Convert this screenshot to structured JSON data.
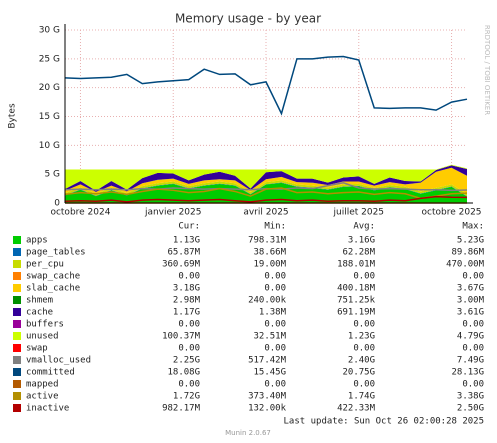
{
  "chart_data": {
    "type": "area",
    "title": "Memory usage - by year",
    "y_label": "Bytes",
    "side_text": "RRDTOOL / TOBI OETIKER",
    "categories": [
      null,
      "octobre 2024",
      null,
      null,
      null,
      null,
      null,
      "janvier 2025",
      null,
      null,
      null,
      null,
      null,
      "avril 2025",
      null,
      null,
      null,
      null,
      null,
      "juillet 2025",
      null,
      null,
      null,
      null,
      null,
      "octobre 2025",
      null
    ],
    "ylim": [
      0,
      30
    ],
    "yticks": [
      {
        "value": 0,
        "label": "0"
      },
      {
        "value": 5,
        "label": "5 G"
      },
      {
        "value": 10,
        "label": "10 G"
      },
      {
        "value": 15,
        "label": "15 G"
      },
      {
        "value": 20,
        "label": "20 G"
      },
      {
        "value": 25,
        "label": "25 G"
      },
      {
        "value": 30,
        "label": "30 G"
      }
    ],
    "grid": true,
    "legend_columns": [
      "Cur:",
      "Min:",
      "Avg:",
      "Max:"
    ],
    "series": [
      {
        "name": "apps",
        "color": "#00cc00",
        "kind": "stack",
        "stats": [
          "1.13G",
          "798.31M",
          "3.16G",
          "5.23G"
        ],
        "values": [
          1.3,
          2.3,
          1.2,
          2.2,
          1.3,
          2.5,
          3,
          3.3,
          2.5,
          3,
          3.3,
          3,
          1.5,
          3.2,
          3.5,
          2.8,
          2.6,
          2.3,
          2.8,
          2.9,
          2.2,
          2.7,
          2.4,
          1.6,
          2.2,
          2.8,
          1.13
        ]
      },
      {
        "name": "page_tables",
        "color": "#0066b3",
        "kind": "stack",
        "stats": [
          "65.87M",
          "38.66M",
          "62.28M",
          "89.86M"
        ],
        "values": [
          0.06,
          0.06,
          0.06,
          0.06,
          0.06,
          0.06,
          0.06,
          0.06,
          0.06,
          0.06,
          0.06,
          0.06,
          0.06,
          0.06,
          0.06,
          0.06,
          0.06,
          0.06,
          0.06,
          0.06,
          0.06,
          0.06,
          0.06,
          0.06,
          0.06,
          0.06,
          0.06
        ]
      },
      {
        "name": "per_cpu",
        "color": "#c8dc00",
        "kind": "stack",
        "stats": [
          "360.69M",
          "19.00M",
          "188.01M",
          "470.00M"
        ],
        "values": [
          0.36,
          0.36,
          0.36,
          0.36,
          0.36,
          0.36,
          0.36,
          0.36,
          0.36,
          0.36,
          0.36,
          0.36,
          0.36,
          0.36,
          0.36,
          0.36,
          0.36,
          0.36,
          0.36,
          0.36,
          0.36,
          0.36,
          0.36,
          0.36,
          0.36,
          0.36,
          0.36
        ]
      },
      {
        "name": "swap_cache",
        "color": "#ff8000",
        "kind": "stack",
        "stats": [
          "0.00",
          "0.00",
          "0.00",
          "0.00"
        ],
        "values": [
          0,
          0,
          0,
          0,
          0,
          0,
          0,
          0,
          0,
          0,
          0,
          0,
          0,
          0,
          0,
          0,
          0,
          0,
          0,
          0,
          0,
          0,
          0,
          0,
          0,
          0,
          0
        ]
      },
      {
        "name": "slab_cache",
        "color": "#ffcc00",
        "kind": "stack",
        "stats": [
          "3.18G",
          "0.00",
          "400.18M",
          "3.67G"
        ],
        "values": [
          0.4,
          0.5,
          0.3,
          0.4,
          0.3,
          0.5,
          0.6,
          0.5,
          0.4,
          0.5,
          0.4,
          0.5,
          0.3,
          0.5,
          0.6,
          0.4,
          0.5,
          0.4,
          0.5,
          0.4,
          0.4,
          0.5,
          0.4,
          1.5,
          2.8,
          2.9,
          3.18
        ]
      },
      {
        "name": "shmem",
        "color": "#008f00",
        "kind": "stack",
        "stats": [
          "2.98M",
          "240.00k",
          "751.25k",
          "3.00M"
        ],
        "values": [
          0.003,
          0.003,
          0.003,
          0.003,
          0.003,
          0.003,
          0.003,
          0.003,
          0.003,
          0.003,
          0.003,
          0.003,
          0.003,
          0.003,
          0.003,
          0.003,
          0.003,
          0.003,
          0.003,
          0.003,
          0.003,
          0.003,
          0.003,
          0.003,
          0.003,
          0.003,
          0.003
        ]
      },
      {
        "name": "cache",
        "color": "#330099",
        "kind": "stack",
        "stats": [
          "1.17G",
          "1.38M",
          "691.19M",
          "3.61G"
        ],
        "values": [
          0.3,
          0.6,
          0.2,
          0.8,
          0.3,
          0.9,
          1.2,
          0.9,
          0.6,
          1,
          1.3,
          0.8,
          0.3,
          1.2,
          1,
          0.6,
          0.7,
          0.4,
          0.7,
          0.9,
          0.3,
          0.8,
          0.6,
          0.2,
          0.3,
          0.4,
          1.17
        ]
      },
      {
        "name": "buffers",
        "color": "#990099",
        "kind": "stack",
        "stats": [
          "0.00",
          "0.00",
          "0.00",
          "0.00"
        ],
        "values": [
          0,
          0,
          0,
          0,
          0,
          0,
          0,
          0,
          0,
          0,
          0,
          0,
          0,
          0,
          0,
          0,
          0,
          0,
          0,
          0,
          0,
          0,
          0,
          0,
          0,
          0,
          0
        ]
      },
      {
        "name": "unused",
        "color": "#ccff00",
        "kind": "stack",
        "stats": [
          "100.37M",
          "32.51M",
          "1.23G",
          "4.79G"
        ],
        "values": [
          3.38,
          1.98,
          3.68,
          1.98,
          3.48,
          1.48,
          0.58,
          0.68,
          1.88,
          0.88,
          0.38,
          1.08,
          3.28,
          0.48,
          0.28,
          1.58,
          1.58,
          2.28,
          1.38,
          1.18,
          2.48,
          1.38,
          1.98,
          2.08,
          0.08,
          0.1,
          0.1
        ]
      },
      {
        "name": "swap",
        "color": "#ff0000",
        "kind": "stack",
        "stats": [
          "0.00",
          "0.00",
          "0.00",
          "0.00"
        ],
        "values": [
          0,
          0,
          0,
          0,
          0,
          0,
          0,
          0,
          0,
          0,
          0,
          0,
          0,
          0,
          0,
          0,
          0,
          0,
          0,
          0,
          0,
          0,
          0,
          0,
          0,
          0,
          0
        ]
      },
      {
        "name": "vmalloc_used",
        "color": "#808080",
        "kind": "line",
        "stats": [
          "2.25G",
          "517.42M",
          "2.40G",
          "7.49G"
        ],
        "values": [
          2.3,
          2.4,
          2.3,
          2.4,
          2.3,
          2.5,
          2.4,
          2.6,
          2.5,
          2.4,
          2.5,
          2.4,
          2.3,
          2.5,
          2.4,
          2.6,
          2.5,
          3,
          3.5,
          2.6,
          2.4,
          2.5,
          2.4,
          2.3,
          2.3,
          2.2,
          2.25
        ]
      },
      {
        "name": "committed",
        "color": "#00487d",
        "kind": "line",
        "stats": [
          "18.08G",
          "15.45G",
          "20.75G",
          "28.13G"
        ],
        "values": [
          21.7,
          21.6,
          21.7,
          21.8,
          22.3,
          20.7,
          21,
          21.2,
          21.4,
          23.2,
          22.3,
          22.4,
          20.5,
          21,
          15.5,
          25,
          25,
          25.3,
          25.4,
          24.8,
          16.5,
          16.4,
          16.5,
          16.5,
          16.1,
          17.5,
          18.0
        ]
      },
      {
        "name": "mapped",
        "color": "#b35a00",
        "kind": "line",
        "stats": [
          "0.00",
          "0.00",
          "0.00",
          "0.00"
        ],
        "values": [
          0,
          0,
          0,
          0,
          0,
          0,
          0,
          0,
          0,
          0,
          0,
          0,
          0,
          0,
          0,
          0,
          0,
          0,
          0,
          0,
          0,
          0,
          0,
          0,
          0,
          0,
          0
        ]
      },
      {
        "name": "active",
        "color": "#b38f00",
        "kind": "line",
        "stats": [
          "1.72G",
          "373.40M",
          "1.74G",
          "3.38G"
        ],
        "values": [
          1.5,
          1.8,
          1.6,
          1.9,
          1.5,
          2,
          2.4,
          2.2,
          1.8,
          2,
          2.5,
          2,
          1.2,
          2.4,
          2.6,
          1.8,
          1.9,
          1.6,
          1.8,
          1.9,
          1.5,
          1.8,
          1.6,
          0.8,
          1.2,
          1.6,
          1.72
        ]
      },
      {
        "name": "inactive",
        "color": "#b30000",
        "kind": "line",
        "stats": [
          "982.17M",
          "132.00k",
          "422.33M",
          "2.50G"
        ],
        "values": [
          0.3,
          0.4,
          0.3,
          0.5,
          0.2,
          0.5,
          0.6,
          0.5,
          0.4,
          0.5,
          0.6,
          0.4,
          0.2,
          0.5,
          0.6,
          0.4,
          0.5,
          0.3,
          0.4,
          0.4,
          0.3,
          0.5,
          0.4,
          0.8,
          1.1,
          1.0,
          0.98
        ]
      }
    ],
    "last_update": "Last update: Sun Oct 26 02:00:28 2025",
    "footer": "Munin 2.0.67"
  }
}
